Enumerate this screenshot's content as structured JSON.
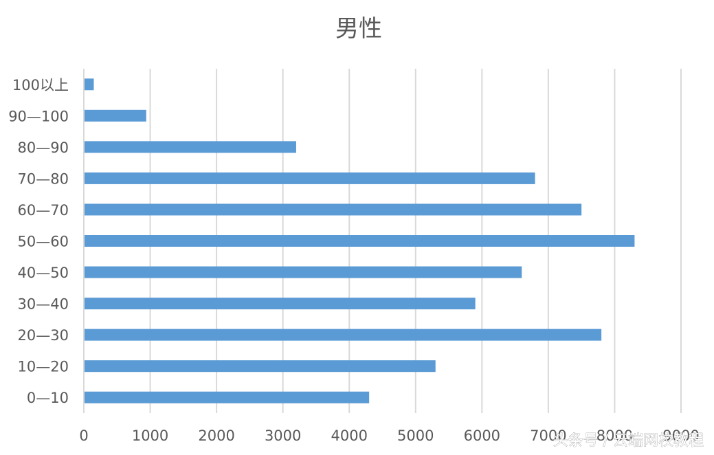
{
  "chart_data": {
    "type": "bar",
    "orientation": "horizontal",
    "title": "男性",
    "xlabel": "",
    "ylabel": "",
    "categories": [
      "0—10",
      "10—20",
      "20—30",
      "30—40",
      "40—50",
      "50—60",
      "60—70",
      "70—80",
      "80—90",
      "90—100",
      "100以上"
    ],
    "values": [
      4300,
      5300,
      7800,
      5900,
      6600,
      8300,
      7500,
      6800,
      3200,
      940,
      150
    ],
    "xlim": [
      0,
      9000
    ],
    "xticks": [
      0,
      1000,
      2000,
      3000,
      4000,
      5000,
      6000,
      7000,
      8000,
      9000
    ],
    "grid": "vertical",
    "legend": "none",
    "bar_color": "#5B9BD5"
  },
  "watermark": "头条号 / 云端网校教程"
}
